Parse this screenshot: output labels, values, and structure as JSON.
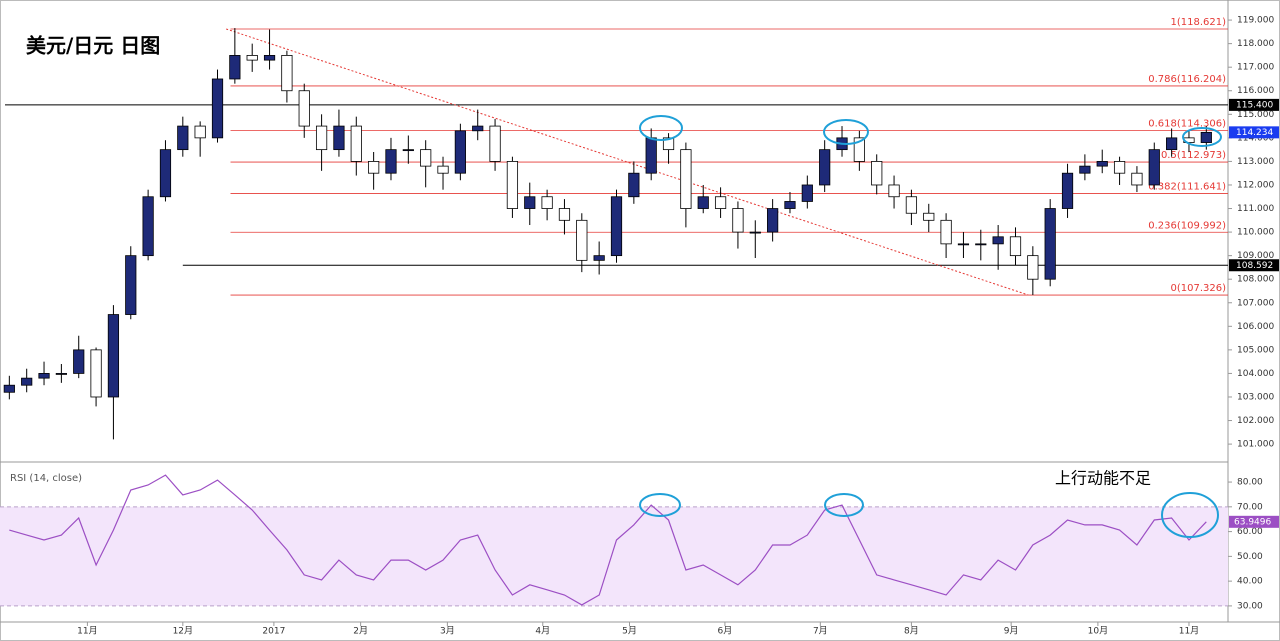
{
  "chart_data": {
    "type": "candlestick",
    "title": "美元/日元 日图",
    "annotation": "上行动能不足",
    "xlim": [
      0,
      282
    ],
    "xticks": [
      {
        "value": 19,
        "label": "11月"
      },
      {
        "value": 41,
        "label": "12月"
      },
      {
        "value": 62,
        "label": "2017"
      },
      {
        "value": 82,
        "label": "2月"
      },
      {
        "value": 102,
        "label": "3月"
      },
      {
        "value": 124,
        "label": "4月"
      },
      {
        "value": 144,
        "label": "5月"
      },
      {
        "value": 166,
        "label": "6月"
      },
      {
        "value": 188,
        "label": "7月"
      },
      {
        "value": 209,
        "label": "8月"
      },
      {
        "value": 232,
        "label": "9月"
      },
      {
        "value": 252,
        "label": "10月"
      },
      {
        "value": 273,
        "label": "11月"
      }
    ],
    "ylim": [
      100.24,
      119.64
    ],
    "yticks": [
      {
        "value": 101,
        "label": "101.000"
      },
      {
        "value": 102,
        "label": "102.000"
      },
      {
        "value": 103,
        "label": "103.000"
      },
      {
        "value": 104,
        "label": "104.000"
      },
      {
        "value": 105,
        "label": "105.000"
      },
      {
        "value": 106,
        "label": "106.000"
      },
      {
        "value": 107,
        "label": "107.000"
      },
      {
        "value": 108,
        "label": "108.000"
      },
      {
        "value": 109,
        "label": "109.000"
      },
      {
        "value": 110,
        "label": "110.000"
      },
      {
        "value": 111,
        "label": "111.000"
      },
      {
        "value": 112,
        "label": "112.000"
      },
      {
        "value": 113,
        "label": "113.000"
      },
      {
        "value": 114,
        "label": "114.000"
      },
      {
        "value": 115,
        "label": "115.000"
      },
      {
        "value": 116,
        "label": "116.000"
      },
      {
        "value": 117,
        "label": "117.000"
      },
      {
        "value": 118,
        "label": "118.000"
      },
      {
        "value": 119,
        "label": "119.000"
      }
    ],
    "up_color": "#1e2a78",
    "down_color": "#ffffff",
    "x": [
      1,
      5,
      9,
      13,
      17,
      21,
      25,
      29,
      33,
      37,
      41,
      45,
      49,
      53,
      57,
      61,
      65,
      69,
      73,
      77,
      81,
      85,
      89,
      93,
      97,
      101,
      105,
      109,
      113,
      117,
      121,
      125,
      129,
      133,
      137,
      141,
      145,
      149,
      153,
      157,
      161,
      165,
      169,
      173,
      177,
      181,
      185,
      189,
      193,
      197,
      201,
      205,
      209,
      213,
      217,
      221,
      225,
      229,
      233,
      237,
      241,
      245,
      249,
      253,
      257,
      261,
      265,
      269,
      273,
      277
    ],
    "ohlc": [
      [
        103.2,
        103.9,
        102.9,
        103.5
      ],
      [
        103.5,
        104.2,
        103.2,
        103.8
      ],
      [
        103.8,
        104.5,
        103.5,
        104.0
      ],
      [
        104.0,
        104.4,
        103.6,
        104.0
      ],
      [
        104.0,
        105.6,
        103.8,
        105.0
      ],
      [
        105.0,
        105.1,
        102.6,
        103.0
      ],
      [
        103.0,
        106.9,
        101.2,
        106.5
      ],
      [
        106.5,
        109.4,
        106.3,
        109.0
      ],
      [
        109.0,
        111.8,
        108.8,
        111.5
      ],
      [
        111.5,
        113.9,
        111.3,
        113.5
      ],
      [
        113.5,
        114.9,
        113.2,
        114.5
      ],
      [
        114.5,
        114.7,
        113.2,
        114.0
      ],
      [
        114.0,
        116.9,
        113.8,
        116.5
      ],
      [
        116.5,
        118.66,
        116.3,
        117.5
      ],
      [
        117.5,
        118.0,
        116.8,
        117.3
      ],
      [
        117.3,
        118.6,
        116.9,
        117.5
      ],
      [
        117.5,
        117.7,
        115.5,
        116.0
      ],
      [
        116.0,
        116.3,
        114.0,
        114.5
      ],
      [
        114.5,
        115.0,
        112.6,
        113.5
      ],
      [
        113.5,
        115.2,
        113.2,
        114.5
      ],
      [
        114.5,
        114.9,
        112.4,
        113.0
      ],
      [
        113.0,
        113.4,
        111.8,
        112.5
      ],
      [
        112.5,
        114.0,
        112.2,
        113.5
      ],
      [
        113.5,
        114.1,
        112.9,
        113.5
      ],
      [
        113.5,
        113.9,
        111.9,
        112.8
      ],
      [
        112.8,
        113.2,
        111.8,
        112.5
      ],
      [
        112.5,
        114.6,
        112.2,
        114.3
      ],
      [
        114.3,
        115.2,
        113.9,
        114.5
      ],
      [
        114.5,
        114.8,
        112.6,
        113.0
      ],
      [
        113.0,
        113.2,
        110.6,
        111.0
      ],
      [
        111.0,
        112.1,
        110.3,
        111.5
      ],
      [
        111.5,
        111.8,
        110.5,
        111.0
      ],
      [
        111.0,
        111.4,
        109.9,
        110.5
      ],
      [
        110.5,
        110.8,
        108.3,
        108.8
      ],
      [
        108.8,
        109.6,
        108.2,
        109.0
      ],
      [
        109.0,
        111.8,
        108.7,
        111.5
      ],
      [
        111.5,
        113.0,
        111.2,
        112.5
      ],
      [
        112.5,
        114.4,
        112.2,
        114.0
      ],
      [
        114.0,
        114.2,
        112.9,
        113.5
      ],
      [
        113.5,
        113.8,
        110.2,
        111.0
      ],
      [
        111.0,
        112.0,
        110.8,
        111.5
      ],
      [
        111.5,
        111.9,
        110.6,
        111.0
      ],
      [
        111.0,
        111.3,
        109.3,
        110.0
      ],
      [
        110.0,
        110.5,
        108.9,
        110.0
      ],
      [
        110.0,
        111.4,
        109.6,
        111.0
      ],
      [
        111.0,
        111.7,
        110.8,
        111.3
      ],
      [
        111.3,
        112.4,
        111.0,
        112.0
      ],
      [
        112.0,
        113.9,
        111.7,
        113.5
      ],
      [
        113.5,
        114.5,
        113.2,
        114.0
      ],
      [
        114.0,
        114.3,
        112.6,
        113.0
      ],
      [
        113.0,
        113.3,
        111.6,
        112.0
      ],
      [
        112.0,
        112.4,
        111.0,
        111.5
      ],
      [
        111.5,
        111.8,
        110.3,
        110.8
      ],
      [
        110.8,
        111.2,
        110.0,
        110.5
      ],
      [
        110.5,
        110.8,
        108.9,
        109.5
      ],
      [
        109.5,
        110.0,
        108.9,
        109.5
      ],
      [
        109.5,
        110.1,
        108.8,
        109.5
      ],
      [
        109.5,
        110.3,
        108.4,
        109.8
      ],
      [
        109.8,
        110.2,
        108.6,
        109.0
      ],
      [
        109.0,
        109.4,
        107.33,
        108.0
      ],
      [
        108.0,
        111.4,
        107.7,
        111.0
      ],
      [
        111.0,
        112.9,
        110.6,
        112.5
      ],
      [
        112.5,
        113.3,
        112.2,
        112.8
      ],
      [
        112.8,
        113.5,
        112.5,
        113.0
      ],
      [
        113.0,
        113.2,
        112.0,
        112.5
      ],
      [
        112.5,
        112.8,
        111.7,
        112.0
      ],
      [
        112.0,
        113.8,
        111.8,
        113.5
      ],
      [
        113.5,
        114.4,
        113.2,
        114.0
      ],
      [
        114.0,
        114.3,
        113.4,
        113.8
      ],
      [
        113.8,
        114.5,
        113.5,
        114.234
      ]
    ],
    "last_price": {
      "value": 114.234,
      "label": "114.234"
    },
    "hlines": [
      {
        "value": 115.4,
        "label": "115.400",
        "from": 0
      },
      {
        "value": 108.592,
        "label": "108.592",
        "from": 41
      }
    ],
    "fib_from": 52,
    "fib": [
      {
        "value": 118.621,
        "label": "1(118.621)"
      },
      {
        "value": 116.204,
        "label": "0.786(116.204)"
      },
      {
        "value": 114.306,
        "label": "0.618(114.306)"
      },
      {
        "value": 112.973,
        "label": "0.5(112.973)"
      },
      {
        "value": 111.641,
        "label": "0.382(111.641)"
      },
      {
        "value": 109.992,
        "label": "0.236(109.992)"
      },
      {
        "value": 107.326,
        "label": "0(107.326)"
      }
    ],
    "trendline": {
      "x": [
        51,
        236
      ],
      "y": [
        118.621,
        107.326
      ]
    },
    "rsi": {
      "title": "RSI (14, close)",
      "color": "#9c4fc4",
      "ylim": [
        23.5,
        88.1
      ],
      "yticks": [
        {
          "value": 30,
          "label": "30.00"
        },
        {
          "value": 40,
          "label": "40.00"
        },
        {
          "value": 50,
          "label": "50.00"
        },
        {
          "value": 60,
          "label": "60.00"
        },
        {
          "value": 70,
          "label": "70.00"
        },
        {
          "value": 80,
          "label": "80.00"
        }
      ],
      "band": [
        30,
        70
      ],
      "values": [
        60.6,
        58.6,
        56.6,
        58.6,
        65.5,
        46.5,
        60.6,
        76.8,
        78.8,
        82.8,
        74.8,
        76.8,
        80.8,
        74.8,
        68.7,
        60.6,
        52.6,
        42.5,
        40.5,
        48.5,
        42.5,
        40.5,
        48.5,
        48.5,
        44.5,
        48.5,
        56.6,
        58.6,
        44.5,
        34.4,
        38.5,
        36.5,
        34.4,
        30.4,
        34.4,
        56.6,
        62.7,
        70.7,
        64.7,
        44.5,
        46.5,
        42.5,
        38.5,
        44.5,
        54.6,
        54.6,
        58.6,
        68.7,
        70.7,
        56.6,
        42.5,
        40.5,
        38.5,
        36.5,
        34.4,
        42.5,
        40.5,
        48.5,
        44.5,
        54.6,
        58.6,
        64.7,
        62.7,
        62.7,
        60.6,
        54.6,
        64.7,
        65.5,
        56.6,
        63.9496
      ],
      "last": {
        "value": 63.9496,
        "label": "63.9496"
      }
    }
  }
}
